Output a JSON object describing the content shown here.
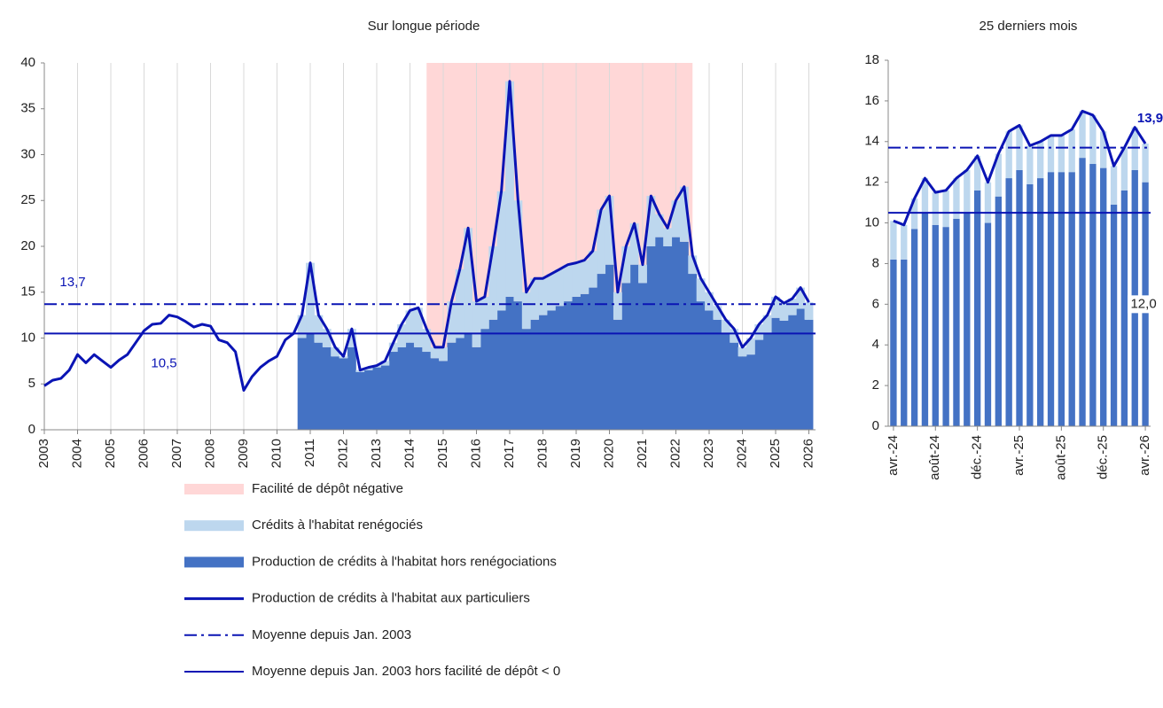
{
  "chart_data": [
    {
      "type": "combo",
      "title": "Sur longue période",
      "x": [
        2003,
        2003.25,
        2003.5,
        2003.75,
        2004,
        2004.25,
        2004.5,
        2004.75,
        2005,
        2005.25,
        2005.5,
        2005.75,
        2006,
        2006.25,
        2006.5,
        2006.75,
        2007,
        2007.25,
        2007.5,
        2007.75,
        2008,
        2008.25,
        2008.5,
        2008.75,
        2009,
        2009.25,
        2009.5,
        2009.75,
        2010,
        2010.25,
        2010.5,
        2010.75,
        2011,
        2011.25,
        2011.5,
        2011.75,
        2012,
        2012.25,
        2012.5,
        2012.75,
        2013,
        2013.25,
        2013.5,
        2013.75,
        2014,
        2014.25,
        2014.5,
        2014.75,
        2015,
        2015.25,
        2015.5,
        2015.75,
        2016,
        2016.25,
        2016.5,
        2016.75,
        2017,
        2017.25,
        2017.5,
        2017.75,
        2018,
        2018.25,
        2018.5,
        2018.75,
        2019,
        2019.25,
        2019.5,
        2019.75,
        2020,
        2020.25,
        2020.5,
        2020.75,
        2021,
        2021.25,
        2021.5,
        2021.75,
        2022,
        2022.25,
        2022.5,
        2022.75,
        2023,
        2023.25,
        2023.5,
        2023.75,
        2024,
        2024.25,
        2024.5,
        2024.75,
        2025,
        2025.25,
        2025.5,
        2025.75,
        2026
      ],
      "series": [
        {
          "name": "Production de crédits à l'habitat hors renégociations",
          "kind": "bar",
          "color": "#4472c4",
          "values": [
            null,
            null,
            null,
            null,
            null,
            null,
            null,
            null,
            null,
            null,
            null,
            null,
            null,
            null,
            null,
            null,
            null,
            null,
            null,
            null,
            null,
            null,
            null,
            null,
            null,
            null,
            null,
            null,
            null,
            null,
            null,
            10.0,
            10.5,
            9.5,
            9.0,
            8.0,
            7.8,
            9.0,
            6.3,
            6.5,
            6.8,
            7.0,
            8.5,
            9.0,
            9.5,
            9.0,
            8.5,
            7.8,
            7.5,
            9.5,
            10.0,
            10.5,
            9.0,
            11.0,
            12.0,
            13.0,
            14.5,
            14.0,
            11.0,
            12.0,
            12.5,
            13.0,
            13.5,
            14.0,
            14.5,
            14.8,
            15.5,
            17.0,
            18.0,
            12.0,
            16.0,
            18.0,
            16.0,
            20.0,
            21.0,
            20.0,
            21.0,
            20.5,
            17.0,
            14.0,
            13.0,
            12.0,
            10.5,
            9.5,
            8.0,
            8.2,
            9.8,
            10.5,
            12.2,
            11.9,
            12.5,
            13.2,
            12.0
          ]
        },
        {
          "name": "Crédits à l'habitat renégociés",
          "kind": "bar",
          "color": "#bdd7ee",
          "values": [
            null,
            null,
            null,
            null,
            null,
            null,
            null,
            null,
            null,
            null,
            null,
            null,
            null,
            null,
            null,
            null,
            null,
            null,
            null,
            null,
            null,
            null,
            null,
            null,
            null,
            null,
            null,
            null,
            null,
            null,
            null,
            2.5,
            7.7,
            3.0,
            2.0,
            1.0,
            0.2,
            2.0,
            0.2,
            0.3,
            0.2,
            0.5,
            1.0,
            2.5,
            3.5,
            4.3,
            2.5,
            1.2,
            1.5,
            4.5,
            7.5,
            11.5,
            5,
            3.5,
            8,
            13,
            23.5,
            11,
            4,
            4.5,
            4,
            4,
            4,
            4,
            3.7,
            3.7,
            4,
            7,
            7.5,
            3,
            4,
            4.5,
            2,
            5.5,
            2.5,
            2,
            4,
            6,
            2,
            2.5,
            2,
            1.5,
            1.5,
            1.5,
            1,
            1.8,
            1.7,
            2,
            2.3,
            1.9,
            1.8,
            2.3,
            1.9
          ]
        },
        {
          "name": "Production de crédits à l'habitat aux particuliers",
          "kind": "line",
          "color": "#0a14b4",
          "values": [
            4.8,
            5.4,
            5.6,
            6.5,
            8.2,
            7.3,
            8.2,
            7.5,
            6.8,
            7.6,
            8.2,
            9.5,
            10.8,
            11.5,
            11.6,
            12.5,
            12.3,
            11.8,
            11.2,
            11.5,
            11.3,
            9.8,
            9.5,
            8.5,
            4.3,
            5.8,
            6.8,
            7.5,
            8.0,
            9.8,
            10.5,
            12.5,
            18.2,
            12.5,
            11.0,
            9.0,
            8.0,
            11.0,
            6.5,
            6.8,
            7.0,
            7.5,
            9.5,
            11.5,
            13.0,
            13.3,
            11.0,
            9.0,
            9.0,
            14.0,
            17.5,
            22.0,
            14.0,
            14.5,
            20.0,
            26.0,
            38.0,
            25.0,
            15.0,
            16.5,
            16.5,
            17.0,
            17.5,
            18.0,
            18.2,
            18.5,
            19.5,
            24.0,
            25.5,
            15.0,
            20.0,
            22.5,
            18.0,
            25.5,
            23.5,
            22.0,
            25.0,
            26.5,
            19.0,
            16.5,
            15.0,
            13.5,
            12.0,
            11.0,
            9.0,
            10.0,
            11.5,
            12.5,
            14.5,
            13.8,
            14.3,
            15.5,
            13.9
          ]
        }
      ],
      "shaded_region": {
        "name": "Facilité de dépôt négative",
        "from": 2014.5,
        "to": 2022.5,
        "color": "#ffd7d7"
      },
      "reference_lines": [
        {
          "name": "Moyenne depuis Jan. 2003",
          "value": 13.7,
          "label": "13,7",
          "style": "dashdot",
          "color": "#0a14b4"
        },
        {
          "name": "Moyenne depuis Jan. 2003 hors facilité de dépôt < 0",
          "value": 10.5,
          "label": "10,5",
          "style": "solid",
          "color": "#0a14b4"
        }
      ],
      "xlim": [
        2003,
        2026.2
      ],
      "xticks": [
        2003,
        2004,
        2005,
        2006,
        2007,
        2008,
        2009,
        2010,
        2011,
        2012,
        2013,
        2014,
        2015,
        2016,
        2017,
        2018,
        2019,
        2020,
        2021,
        2022,
        2023,
        2024,
        2025,
        2026
      ],
      "ylim": [
        0,
        40
      ],
      "yticks": [
        0,
        5,
        10,
        15,
        20,
        25,
        30,
        35,
        40
      ],
      "grid": "x"
    },
    {
      "type": "combo",
      "title": "25 derniers mois",
      "categories": [
        "avr.-24",
        null,
        null,
        null,
        "août-24",
        null,
        null,
        null,
        "déc.-24",
        null,
        null,
        null,
        "avr.-25",
        null,
        null,
        null,
        "août-25",
        null,
        null,
        null,
        "déc.-25",
        null,
        null,
        null,
        "avr.-26"
      ],
      "series": [
        {
          "kind": "bar",
          "color": "#4472c4",
          "values": [
            8.2,
            8.2,
            9.7,
            10.5,
            9.9,
            9.8,
            10.2,
            10.5,
            11.6,
            10.0,
            11.3,
            12.2,
            12.6,
            11.9,
            12.2,
            12.5,
            12.5,
            12.5,
            13.2,
            12.9,
            12.7,
            10.9,
            11.6,
            12.6,
            12.0
          ],
          "value_labels": [
            null,
            null,
            null,
            null,
            null,
            null,
            null,
            null,
            null,
            null,
            null,
            null,
            null,
            null,
            null,
            null,
            null,
            null,
            null,
            null,
            null,
            null,
            null,
            null,
            "12,0"
          ]
        },
        {
          "kind": "bar",
          "color": "#bdd7ee",
          "values": [
            1.9,
            1.7,
            1.5,
            1.7,
            1.6,
            1.8,
            2.0,
            2.1,
            1.7,
            2.0,
            2.1,
            2.3,
            2.2,
            1.9,
            1.8,
            1.8,
            1.8,
            2.1,
            2.3,
            2.4,
            1.8,
            1.9,
            2.1,
            2.1,
            1.9
          ]
        },
        {
          "kind": "line",
          "color": "#0a14b4",
          "values": [
            10.1,
            9.9,
            11.2,
            12.2,
            11.5,
            11.6,
            12.2,
            12.6,
            13.3,
            12.0,
            13.4,
            14.5,
            14.8,
            13.8,
            14.0,
            14.3,
            14.3,
            14.6,
            15.5,
            15.3,
            14.5,
            12.8,
            13.7,
            14.7,
            13.9
          ],
          "value_labels": [
            null,
            null,
            null,
            null,
            null,
            null,
            null,
            null,
            null,
            null,
            null,
            null,
            null,
            null,
            null,
            null,
            null,
            null,
            null,
            null,
            null,
            null,
            null,
            null,
            "13,9"
          ]
        }
      ],
      "reference_lines": [
        {
          "value": 13.7,
          "style": "dashdot",
          "color": "#0a14b4"
        },
        {
          "value": 10.5,
          "style": "solid",
          "color": "#0a14b4"
        }
      ],
      "ylim": [
        0,
        18
      ],
      "yticks": [
        0,
        2,
        4,
        6,
        8,
        10,
        12,
        14,
        16,
        18
      ],
      "grid": false
    }
  ]
}
